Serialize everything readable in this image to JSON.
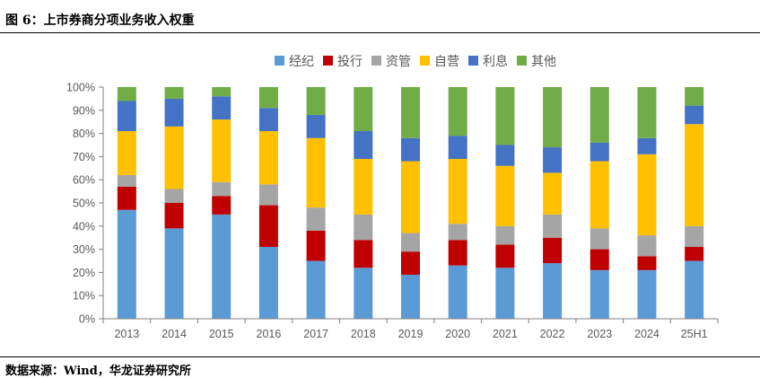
{
  "figure": {
    "title": "图 6：上市券商分项业务收入权重",
    "source": "数据来源：Wind，华龙证券研究所"
  },
  "chart_data": {
    "type": "bar",
    "stacked": true,
    "title": "上市券商分项业务收入权重",
    "categories": [
      "2013",
      "2014",
      "2015",
      "2016",
      "2017",
      "2018",
      "2019",
      "2020",
      "2021",
      "2022",
      "2023",
      "2024",
      "25H1"
    ],
    "series": [
      {
        "name": "经纪",
        "color": "#5B9BD5",
        "values": [
          47,
          39,
          45,
          31,
          25,
          22,
          19,
          23,
          22,
          24,
          21,
          21,
          25
        ]
      },
      {
        "name": "投行",
        "color": "#C00000",
        "values": [
          10,
          11,
          8,
          18,
          13,
          12,
          10,
          11,
          10,
          11,
          9,
          6,
          6
        ]
      },
      {
        "name": "资管",
        "color": "#A5A5A5",
        "values": [
          5,
          6,
          6,
          9,
          10,
          11,
          8,
          7,
          8,
          10,
          9,
          9,
          9
        ]
      },
      {
        "name": "自营",
        "color": "#FFC000",
        "values": [
          19,
          27,
          27,
          23,
          30,
          24,
          31,
          28,
          26,
          18,
          29,
          35,
          44
        ]
      },
      {
        "name": "利息",
        "color": "#4472C4",
        "values": [
          13,
          12,
          10,
          10,
          10,
          12,
          10,
          10,
          9,
          11,
          8,
          7,
          8
        ]
      },
      {
        "name": "其他",
        "color": "#70AD47",
        "values": [
          6,
          5,
          4,
          9,
          12,
          19,
          22,
          21,
          25,
          26,
          24,
          22,
          8
        ]
      }
    ],
    "yticks": [
      "0%",
      "10%",
      "20%",
      "30%",
      "40%",
      "50%",
      "60%",
      "70%",
      "80%",
      "90%",
      "100%"
    ],
    "ylim": [
      0,
      100
    ],
    "xlabel": "",
    "ylabel": "",
    "legend": "top-center",
    "grid": false
  }
}
